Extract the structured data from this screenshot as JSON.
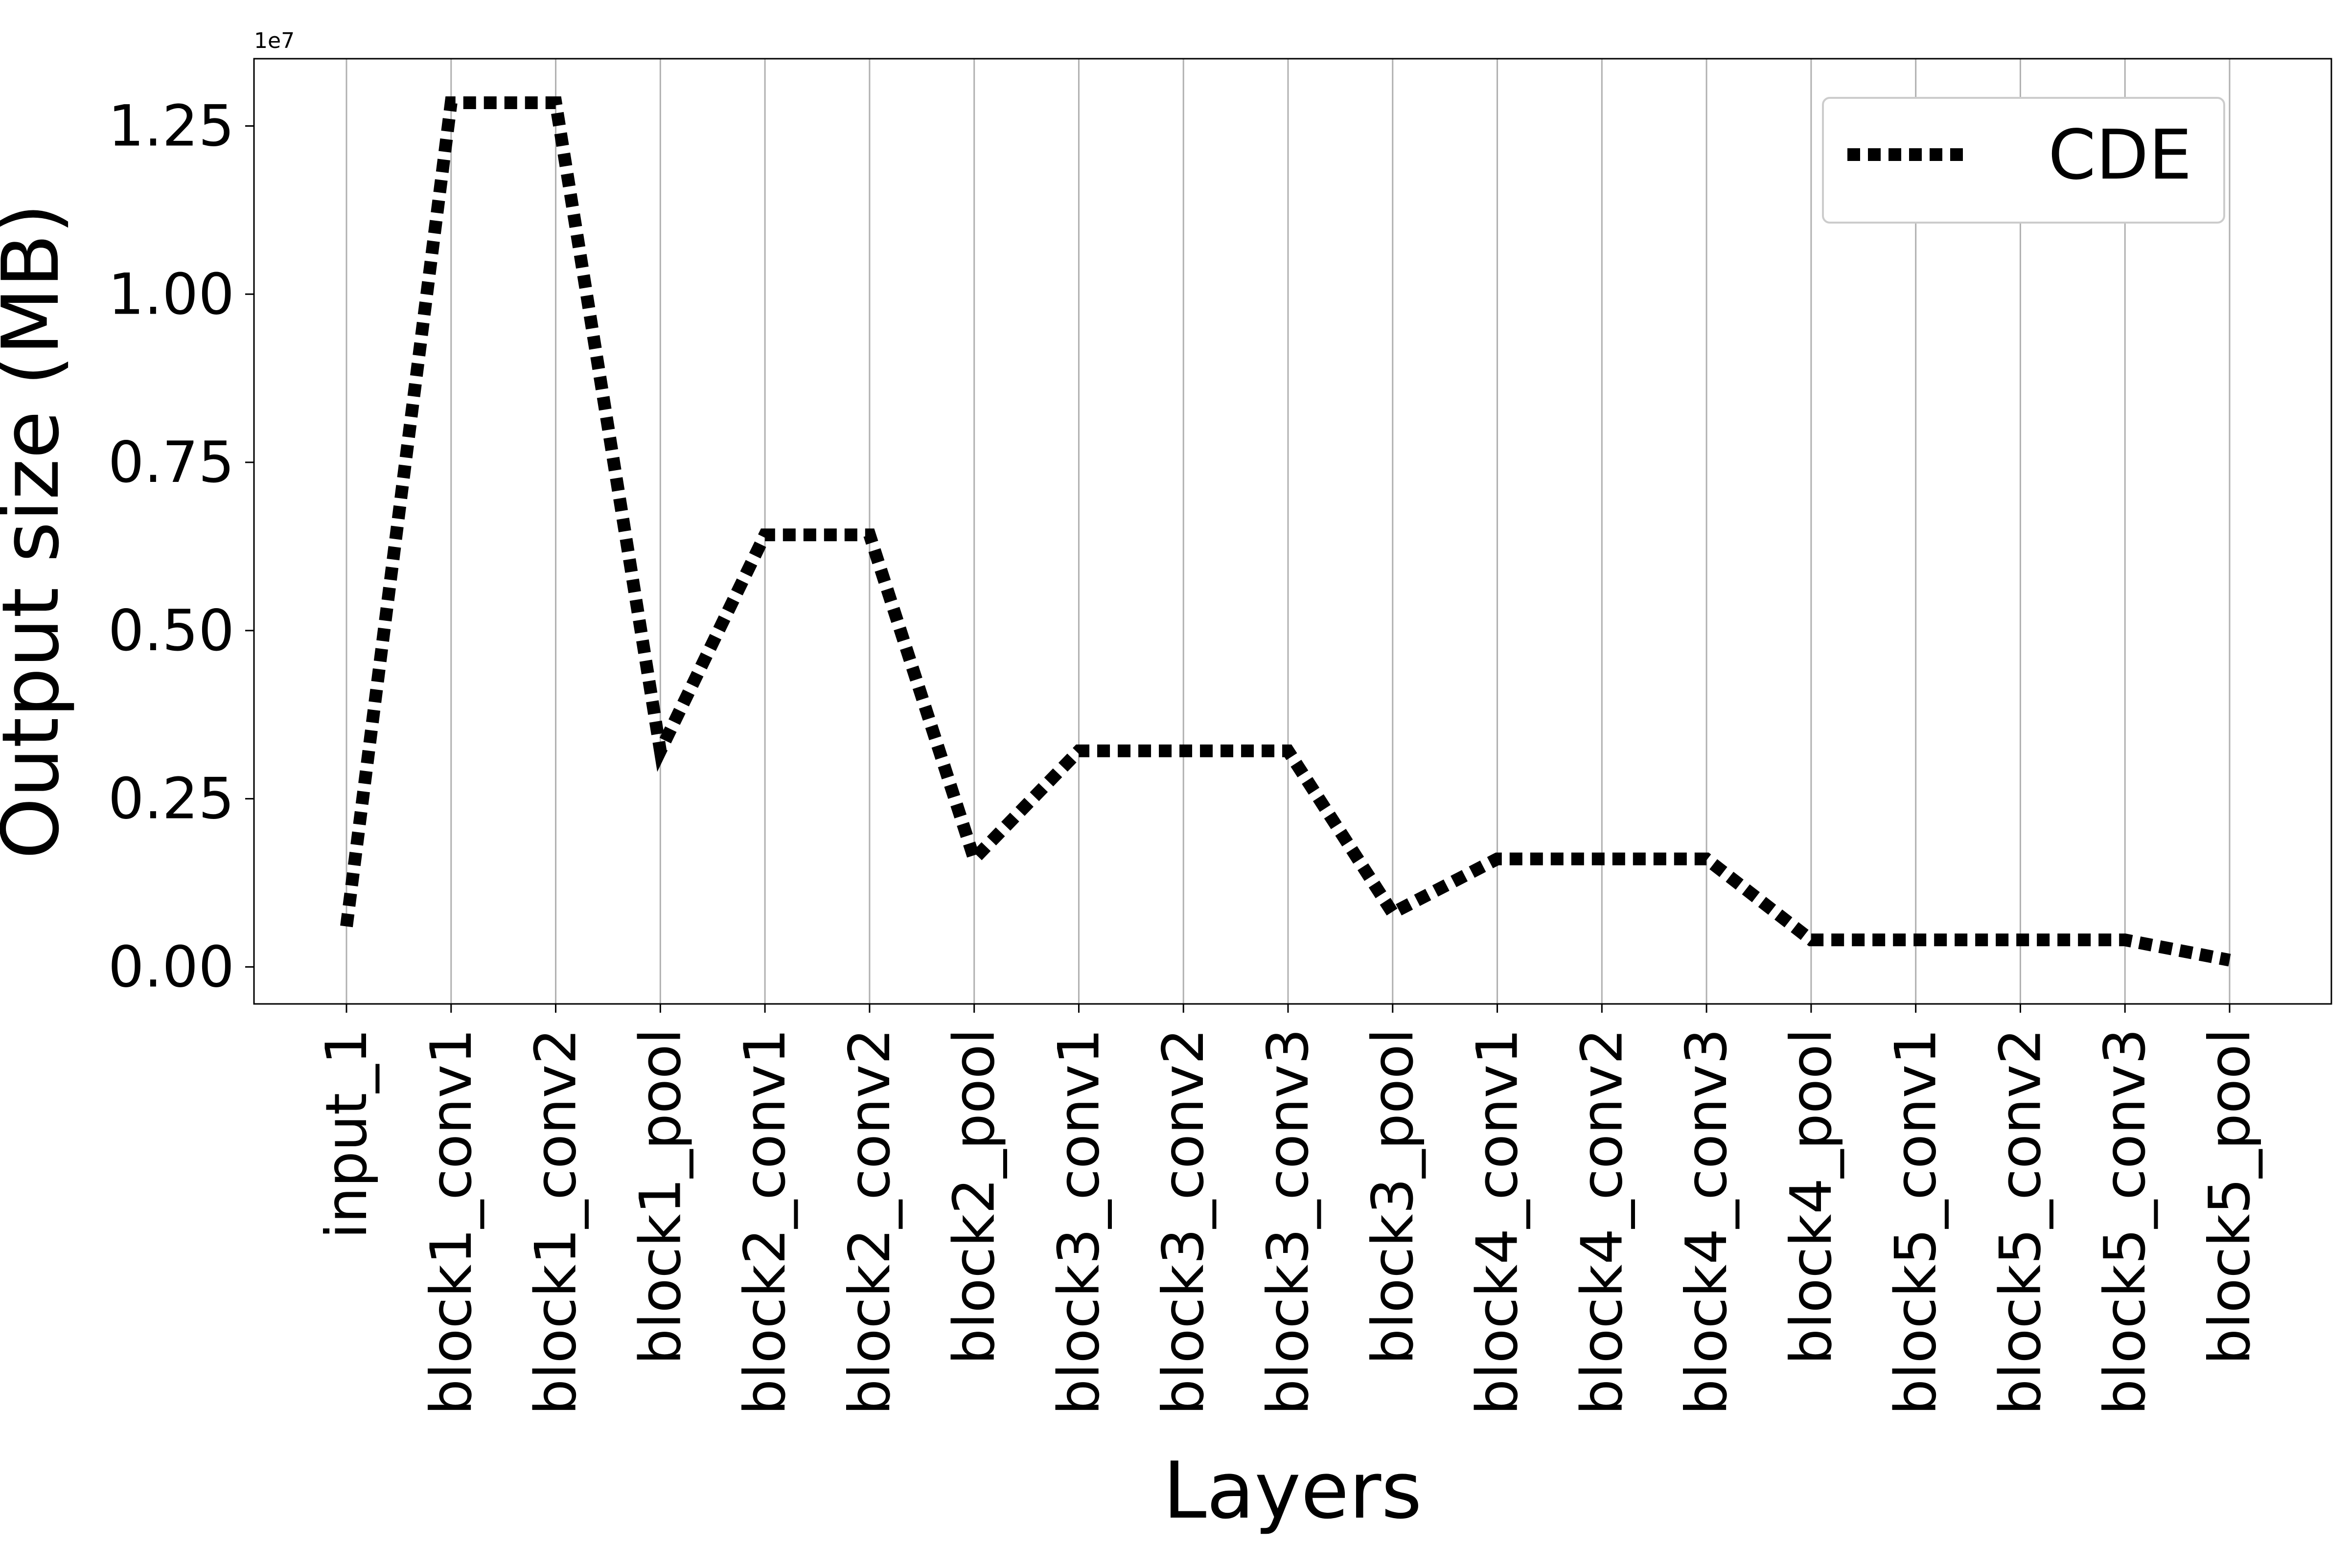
{
  "chart_data": {
    "type": "line",
    "title": "",
    "xlabel": "Layers",
    "ylabel": "Output size (MB)",
    "y_offset_label": "1e7",
    "y_scale": 10000000,
    "ylim": [
      -550000,
      13500000
    ],
    "yticks": [
      0,
      2500000,
      5000000,
      7500000,
      10000000,
      12500000
    ],
    "ytick_labels": [
      "0.00",
      "0.25",
      "0.50",
      "0.75",
      "1.00",
      "1.25"
    ],
    "grid": "vertical",
    "legend_position": "top-right",
    "categories": [
      "input_1",
      "block1_conv1",
      "block1_conv2",
      "block1_pool",
      "block2_conv1",
      "block2_conv2",
      "block2_pool",
      "block3_conv1",
      "block3_conv2",
      "block3_conv3",
      "block3_pool",
      "block4_conv1",
      "block4_conv2",
      "block4_conv3",
      "block4_pool",
      "block5_conv1",
      "block5_conv2",
      "block5_conv3",
      "block5_pool"
    ],
    "series": [
      {
        "name": "CDE",
        "color": "#000000",
        "line_style": "dotted",
        "values": [
          602112,
          12845056,
          12845056,
          3211264,
          6422528,
          6422528,
          1605632,
          3211264,
          3211264,
          3211264,
          802816,
          1605632,
          1605632,
          1605632,
          401408,
          401408,
          401408,
          401408,
          100352
        ]
      }
    ]
  }
}
